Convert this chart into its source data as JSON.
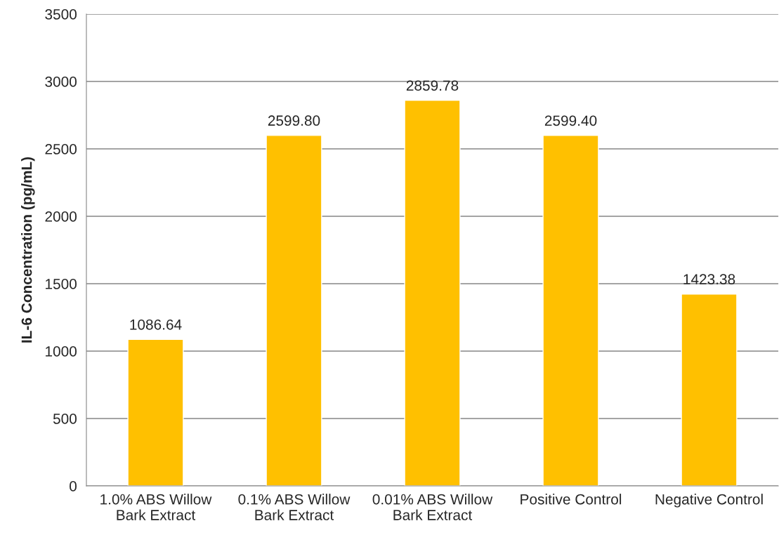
{
  "chart_data": {
    "type": "bar",
    "ylabel": "IL-6 Concentration (pg/mL)",
    "categories": [
      "1.0% ABS Willow\nBark Extract",
      "0.1% ABS Willow\nBark Extract",
      "0.01% ABS Willow\nBark Extract",
      "Positive Control",
      "Negative Control"
    ],
    "values": [
      1086.64,
      2599.8,
      2859.78,
      2599.4,
      1423.38
    ],
    "value_labels": [
      "1086.64",
      "2599.80",
      "2859.78",
      "2599.40",
      "1423.38"
    ],
    "color": "#ffc000",
    "ylim": [
      0,
      3500
    ],
    "yticks": [
      0,
      500,
      1000,
      1500,
      2000,
      2500,
      3000,
      3500
    ],
    "grid": "y",
    "legend": false
  }
}
